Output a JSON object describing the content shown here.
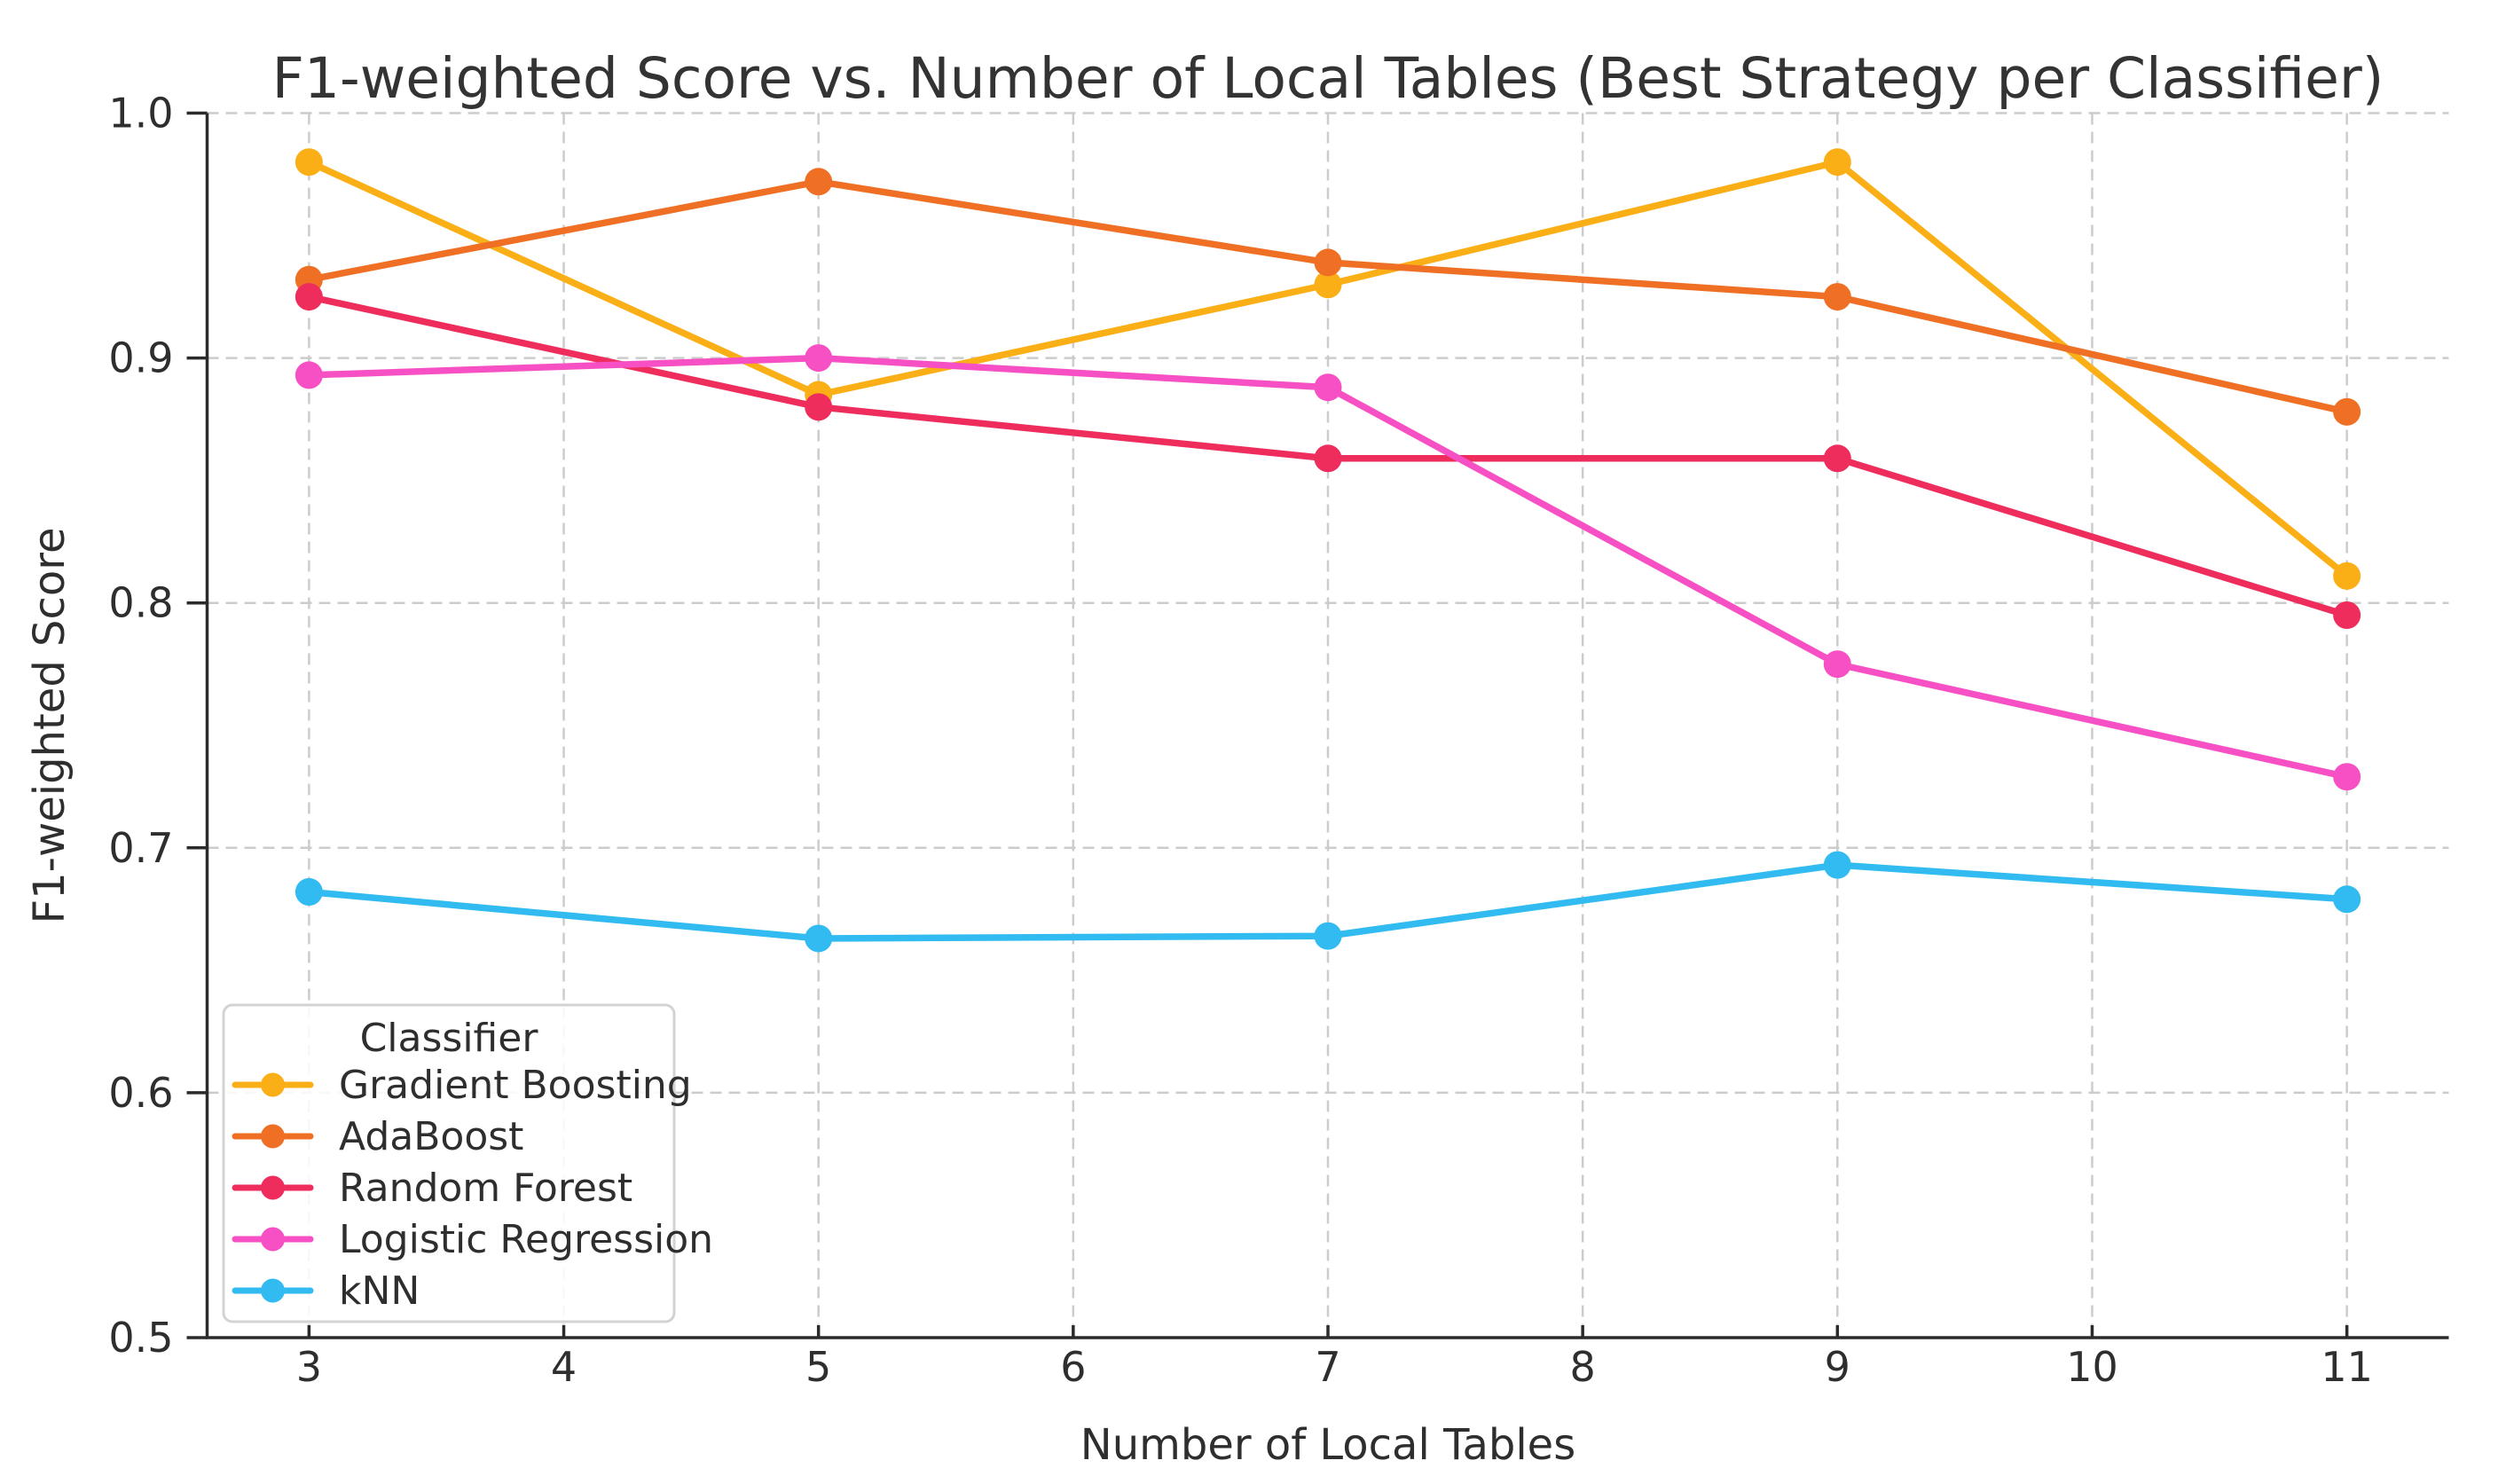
{
  "chart_data": {
    "type": "line",
    "title": "F1-weighted Score vs. Number of Local Tables (Best Strategy per Classifier)",
    "xlabel": "Number of Local Tables",
    "ylabel": "F1-weighted Score",
    "xlim": [
      2.6,
      11.4
    ],
    "ylim": [
      0.5,
      1.0
    ],
    "grid": true,
    "grid_style": "dashed",
    "x": [
      3,
      5,
      7,
      9,
      11
    ],
    "x_tick_values": [
      3,
      4,
      5,
      6,
      7,
      8,
      9,
      10,
      11
    ],
    "x_tick_labels": [
      "3",
      "4",
      "5",
      "6",
      "7",
      "8",
      "9",
      "10",
      "11"
    ],
    "y_tick_values": [
      0.5,
      0.6,
      0.7,
      0.8,
      0.9,
      1.0
    ],
    "y_tick_labels": [
      "0.5",
      "0.6",
      "0.7",
      "0.8",
      "0.9",
      "1.0"
    ],
    "legend": {
      "title": "Classifier",
      "position": "lower-left"
    },
    "series": [
      {
        "name": "Gradient Boosting",
        "color": "#FBAF17",
        "values": [
          0.98,
          0.885,
          0.93,
          0.98,
          0.811
        ]
      },
      {
        "name": "AdaBoost",
        "color": "#EF7025",
        "values": [
          0.932,
          0.972,
          0.939,
          0.925,
          0.878
        ]
      },
      {
        "name": "Random Forest",
        "color": "#EE2D5D",
        "values": [
          0.925,
          0.88,
          0.859,
          0.859,
          0.795
        ]
      },
      {
        "name": "Logistic Regression",
        "color": "#F750C4",
        "values": [
          0.893,
          0.9,
          0.888,
          0.775,
          0.729
        ]
      },
      {
        "name": "kNN",
        "color": "#31BBF0",
        "values": [
          0.682,
          0.663,
          0.664,
          0.693,
          0.679
        ]
      }
    ],
    "colors": {
      "background": "#FFFFFF",
      "gridline": "#CCCCCC",
      "spine": "#2B2B2B",
      "text": "#2E2E2E",
      "legend_border": "#D3D3D3",
      "legend_fill": "#FFFFFF"
    }
  }
}
